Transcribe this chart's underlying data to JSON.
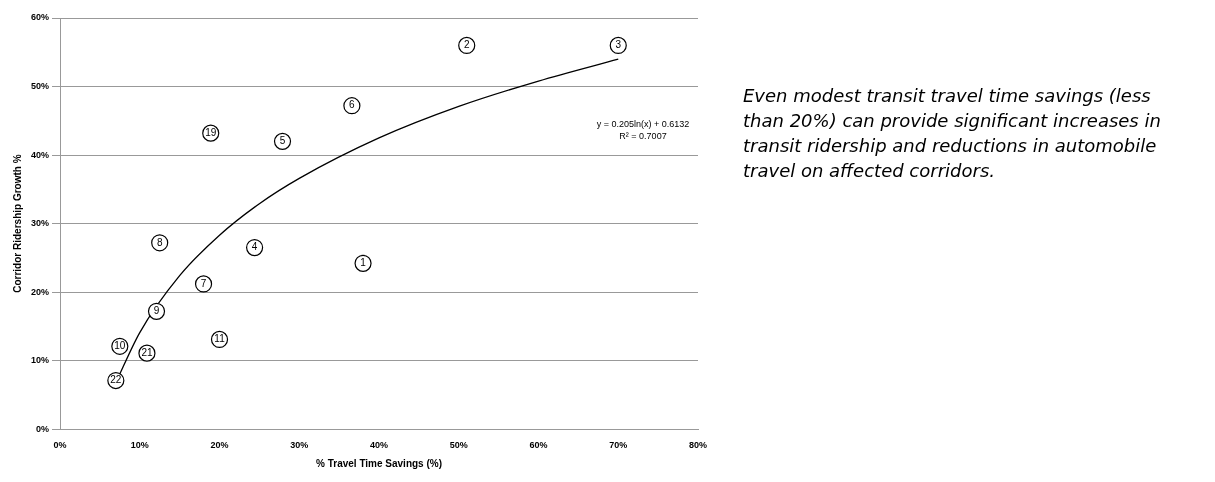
{
  "chart_data": {
    "type": "scatter",
    "xlabel": "% Travel Time Savings (%)",
    "ylabel": "Corridor Ridership Growth %",
    "xlim": [
      0,
      80
    ],
    "xticks": [
      {
        "value": 0,
        "label": "0%"
      },
      {
        "value": 10,
        "label": "10%"
      },
      {
        "value": 20,
        "label": "20%"
      },
      {
        "value": 30,
        "label": "30%"
      },
      {
        "value": 40,
        "label": "40%"
      },
      {
        "value": 50,
        "label": "50%"
      },
      {
        "value": 60,
        "label": "60%"
      },
      {
        "value": 70,
        "label": "70%"
      },
      {
        "value": 80,
        "label": "80%"
      }
    ],
    "ylim": [
      0,
      60
    ],
    "yticks": [
      {
        "value": 0,
        "label": "0%"
      },
      {
        "value": 10,
        "label": "10%"
      },
      {
        "value": 20,
        "label": "20%"
      },
      {
        "value": 30,
        "label": "30%"
      },
      {
        "value": 40,
        "label": "40%"
      },
      {
        "value": 50,
        "label": "50%"
      },
      {
        "value": 60,
        "label": "60%"
      }
    ],
    "grid": "y",
    "legend": false,
    "marker": "circle",
    "series": [
      {
        "type": "scatter",
        "color": "#000000",
        "x": [
          38,
          51,
          70,
          24.4,
          27.9,
          36.6,
          18,
          12.5,
          12.1,
          7.5,
          20,
          18.9,
          10.9,
          7
        ],
        "values": [
          24.2,
          56,
          56,
          26.5,
          42,
          47.2,
          21.2,
          27.2,
          17.2,
          12.1,
          13.1,
          43.2,
          11.1,
          7.1
        ]
      },
      {
        "type": "line",
        "color": "#000000",
        "line_style": "solid",
        "marker": "none",
        "x": [
          7,
          10,
          15,
          20,
          25,
          30,
          40,
          50,
          60,
          70
        ],
        "values": [
          6.8,
          14.1,
          22.4,
          28.3,
          32.9,
          36.6,
          42.5,
          47.1,
          50.8,
          54
        ]
      }
    ],
    "annotations": [
      {
        "text": "1",
        "x": 38,
        "y": 24.2
      },
      {
        "text": "2",
        "x": 51,
        "y": 56
      },
      {
        "text": "3",
        "x": 70,
        "y": 56
      },
      {
        "text": "4",
        "x": 24.4,
        "y": 26.5
      },
      {
        "text": "5",
        "x": 27.9,
        "y": 42
      },
      {
        "text": "6",
        "x": 36.6,
        "y": 47.2
      },
      {
        "text": "7",
        "x": 18,
        "y": 21.2
      },
      {
        "text": "8",
        "x": 12.5,
        "y": 27.2
      },
      {
        "text": "9",
        "x": 12.1,
        "y": 17.2
      },
      {
        "text": "10",
        "x": 7.5,
        "y": 12.1
      },
      {
        "text": "11",
        "x": 20,
        "y": 13.1
      },
      {
        "text": "19",
        "x": 18.9,
        "y": 43.2
      },
      {
        "text": "21",
        "x": 10.9,
        "y": 11.1
      },
      {
        "text": "22",
        "x": 7,
        "y": 7.1
      },
      "y = 0.205ln(x) + 0.6132",
      "R² = 0.7007",
      "Even modest transit travel time savings (less than 20%) can provide significant increases in transit ridership and reductions in automobile travel on affected corridors."
    ]
  }
}
